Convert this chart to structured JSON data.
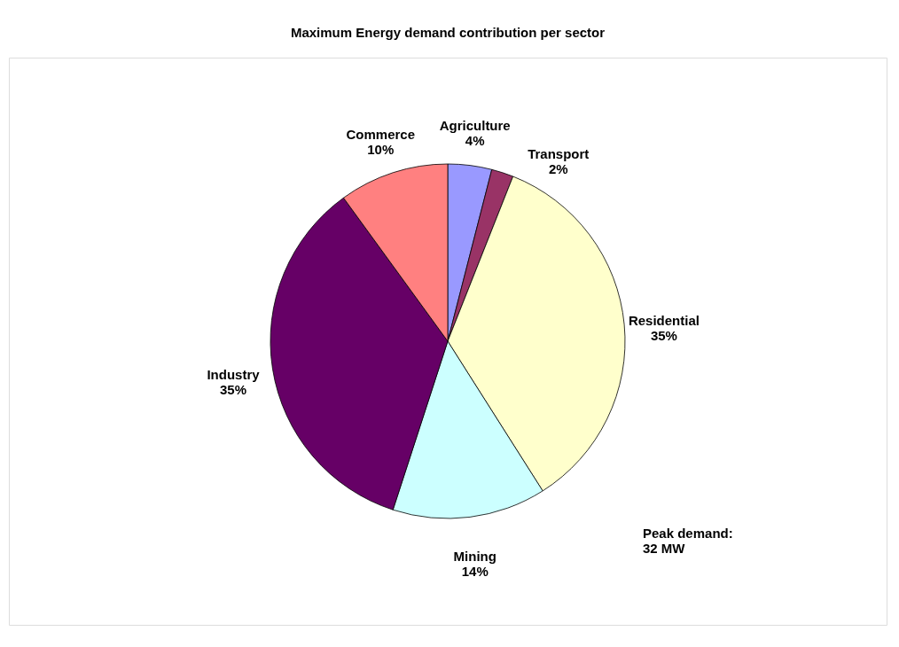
{
  "chart_data": {
    "type": "pie",
    "title": "Maximum Energy demand contribution per sector",
    "categories": [
      "Agriculture",
      "Transport",
      "Residential",
      "Mining",
      "Industry",
      "Commerce"
    ],
    "values": [
      4,
      2,
      35,
      14,
      35,
      10
    ],
    "colors": [
      "#9999ff",
      "#993366",
      "#ffffcc",
      "#ccffff",
      "#660066",
      "#ff8080"
    ],
    "value_labels": [
      "4%",
      "2%",
      "35%",
      "14%",
      "35%",
      "10%"
    ],
    "legend": false,
    "annotations": [
      "Peak demand:\n32 MW"
    ]
  }
}
